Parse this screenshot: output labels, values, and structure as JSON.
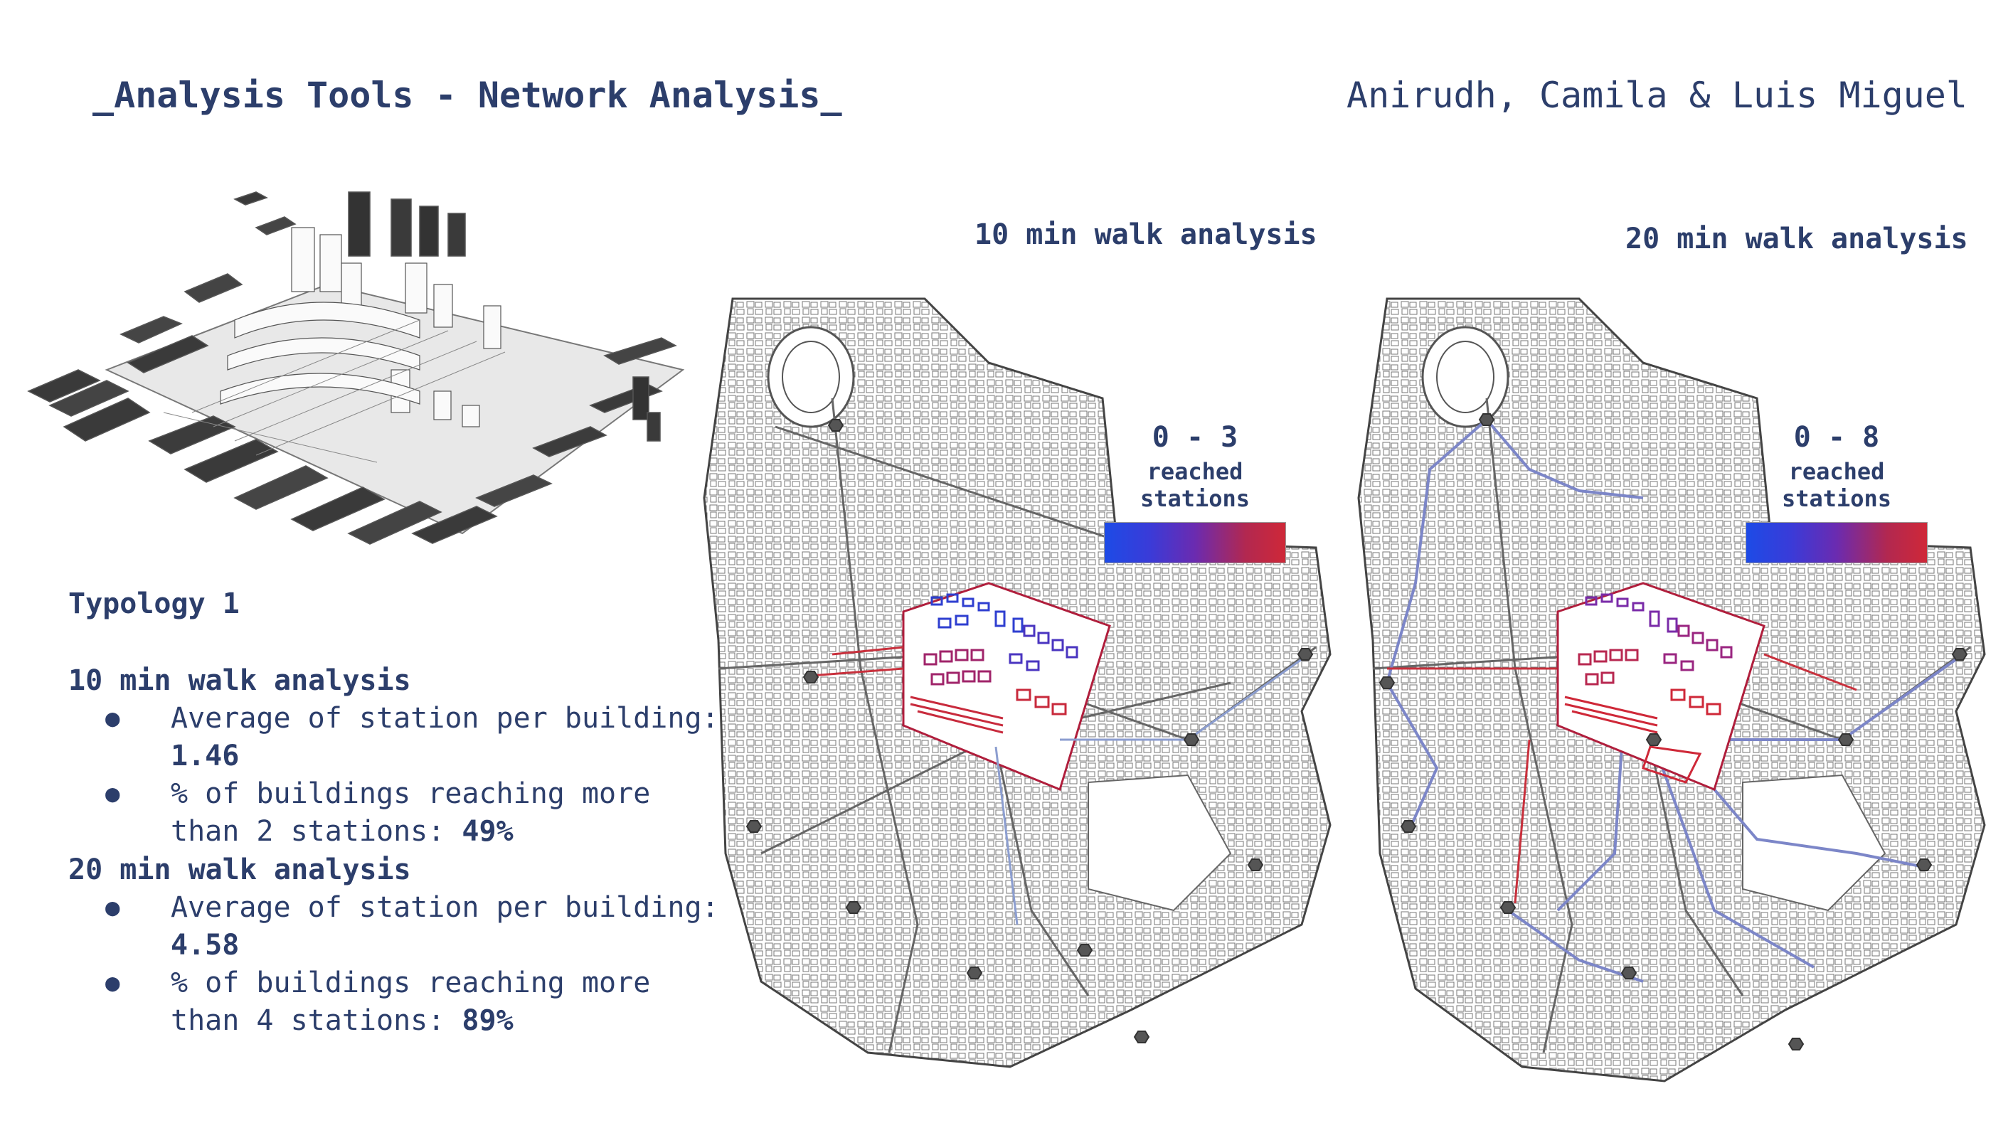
{
  "header": {
    "title": "_Analysis Tools - Network Analysis_",
    "authors": "Anirudh, Camila & Luis Miguel"
  },
  "typology": "Typology 1",
  "analysis_10": {
    "heading": "10 min walk analysis",
    "b1_text": "Average of station per building: ",
    "b1_value": "1.46",
    "b2_text": "% of buildings reaching more than 2 stations: ",
    "b2_value": "49%"
  },
  "analysis_20": {
    "heading": "20 min walk analysis",
    "b1_text": "Average of station per building: ",
    "b1_value": "4.58",
    "b2_text": "% of buildings reaching more than 4 stations: ",
    "b2_value": "89%"
  },
  "map_10": {
    "title": "10 min walk analysis",
    "legend_range": "0 - 3",
    "legend_label": "reached stations"
  },
  "map_20": {
    "title": "20 min walk analysis",
    "legend_range": "0 - 8",
    "legend_label": "reached stations"
  },
  "colors": {
    "text": "#2c3e6b",
    "gradient_low": "#1d4be6",
    "gradient_high": "#cf2838",
    "street": "#555555",
    "station": "#666666"
  }
}
